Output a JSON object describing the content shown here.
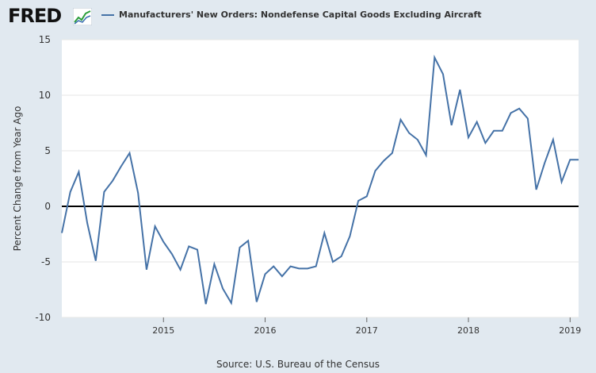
{
  "header": {
    "logo_text": "FRED",
    "legend_label": "Manufacturers' New Orders: Nondefense Capital Goods Excluding Aircraft"
  },
  "source": "Source: U.S. Bureau of the Census",
  "colors": {
    "series": "#4572a7",
    "zero_line": "#000000",
    "grid": "#e6e6e6",
    "plot_bg": "#ffffff"
  },
  "chart_data": {
    "type": "line",
    "title": "",
    "xlabel": "",
    "ylabel": "Percent Change from Year Ago",
    "ylim": [
      -10,
      15
    ],
    "yticks": [
      -10,
      -5,
      0,
      5,
      10,
      15
    ],
    "xlim": [
      "2014-01",
      "2019-02"
    ],
    "xticks": [
      {
        "label": "2015",
        "x": "2015-01"
      },
      {
        "label": "2016",
        "x": "2016-01"
      },
      {
        "label": "2017",
        "x": "2017-01"
      },
      {
        "label": "2018",
        "x": "2018-01"
      },
      {
        "label": "2019",
        "x": "2019-01"
      }
    ],
    "grid": true,
    "legend": "top",
    "series": [
      {
        "name": "Manufacturers' New Orders: Nondefense Capital Goods Excluding Aircraft",
        "x": [
          "2014-01",
          "2014-02",
          "2014-03",
          "2014-04",
          "2014-05",
          "2014-06",
          "2014-07",
          "2014-08",
          "2014-09",
          "2014-10",
          "2014-11",
          "2014-12",
          "2015-01",
          "2015-02",
          "2015-03",
          "2015-04",
          "2015-05",
          "2015-06",
          "2015-07",
          "2015-08",
          "2015-09",
          "2015-10",
          "2015-11",
          "2015-12",
          "2016-01",
          "2016-02",
          "2016-03",
          "2016-04",
          "2016-05",
          "2016-06",
          "2016-07",
          "2016-08",
          "2016-09",
          "2016-10",
          "2016-11",
          "2016-12",
          "2017-01",
          "2017-02",
          "2017-03",
          "2017-04",
          "2017-05",
          "2017-06",
          "2017-07",
          "2017-08",
          "2017-09",
          "2017-10",
          "2017-11",
          "2017-12",
          "2018-01",
          "2018-02",
          "2018-03",
          "2018-04",
          "2018-05",
          "2018-06",
          "2018-07",
          "2018-08",
          "2018-09",
          "2018-10",
          "2018-11",
          "2018-12",
          "2019-01",
          "2019-02"
        ],
        "values": [
          -2.4,
          1.3,
          3.1,
          -1.5,
          -4.9,
          1.3,
          2.3,
          3.6,
          4.8,
          1.2,
          -5.7,
          -1.8,
          -3.2,
          -4.3,
          -5.7,
          -3.6,
          -3.9,
          -8.8,
          -5.2,
          -7.4,
          -8.7,
          -3.7,
          -3.1,
          -8.6,
          -6.1,
          -5.4,
          -6.3,
          -5.4,
          -5.6,
          -5.6,
          -5.4,
          -2.4,
          -5.0,
          -4.5,
          -2.7,
          0.5,
          0.9,
          3.2,
          4.1,
          4.8,
          7.8,
          6.6,
          6.0,
          4.6,
          13.4,
          11.9,
          7.3,
          10.5,
          6.2,
          7.6,
          5.7,
          6.8,
          6.8,
          8.4,
          8.8,
          7.9,
          1.5,
          3.9,
          6.0,
          2.2,
          4.2,
          4.2
        ]
      }
    ]
  }
}
